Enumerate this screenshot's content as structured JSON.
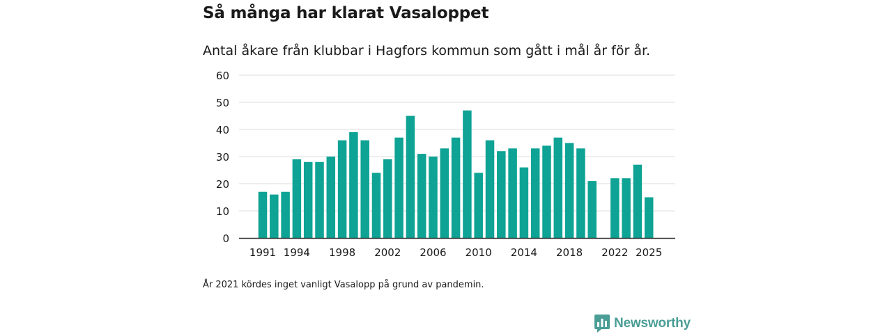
{
  "title": "Så många har klarat Vasaloppet",
  "subtitle": "Antal åkare från klubbar i Hagfors kommun som gått i mål år för år.",
  "note": "År 2021 kördes inget vanligt Vasalopp på grund av pandemin.",
  "logo": {
    "text": "Newsworthy",
    "icon": "newsworthy-logo-icon"
  },
  "colors": {
    "bar": "#0ea394",
    "grid": "#dddddd",
    "axis": "#333333",
    "text": "#1a1a1a",
    "logo": "#4a9e96"
  },
  "chart_data": {
    "type": "bar",
    "title": "Så många har klarat Vasaloppet",
    "xlabel": "",
    "ylabel": "",
    "ylim": [
      0,
      60
    ],
    "yticks": [
      0,
      10,
      20,
      30,
      40,
      50,
      60
    ],
    "xticks": [
      1991,
      1994,
      1998,
      2002,
      2006,
      2010,
      2014,
      2018,
      2022,
      2025
    ],
    "grid": true,
    "categories": [
      1991,
      1992,
      1993,
      1994,
      1995,
      1996,
      1997,
      1998,
      1999,
      2000,
      2001,
      2002,
      2003,
      2004,
      2005,
      2006,
      2007,
      2008,
      2009,
      2010,
      2011,
      2012,
      2013,
      2014,
      2015,
      2016,
      2017,
      2018,
      2019,
      2020,
      2021,
      2022,
      2023,
      2024,
      2025
    ],
    "values": [
      17,
      16,
      17,
      29,
      28,
      28,
      30,
      36,
      39,
      36,
      24,
      29,
      37,
      45,
      31,
      30,
      33,
      37,
      47,
      24,
      36,
      32,
      33,
      26,
      33,
      34,
      37,
      35,
      33,
      21,
      null,
      22,
      22,
      27,
      15
    ]
  }
}
